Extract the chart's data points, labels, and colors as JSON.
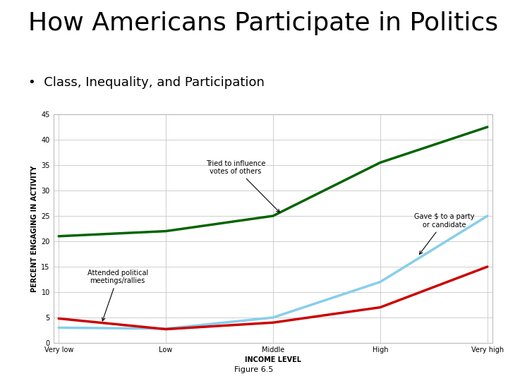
{
  "title": "How Americans Participate in Politics",
  "subtitle": "Class, Inequality, and Participation",
  "figure_label": "Figure 6.5",
  "xlabel": "INCOME LEVEL",
  "ylabel": "PERCENT ENGAGING IN ACTIVITY",
  "x_categories": [
    "Very low",
    "Low",
    "Middle",
    "High",
    "Very high"
  ],
  "y_ticks": [
    0,
    5,
    10,
    15,
    20,
    25,
    30,
    35,
    40,
    45
  ],
  "ylim": [
    0,
    45
  ],
  "series": [
    {
      "label": "Tried to influence votes of others",
      "color": "#006400",
      "linewidth": 2.5,
      "values": [
        21.0,
        22.0,
        25.0,
        35.5,
        42.5
      ]
    },
    {
      "label": "Gave $ to a party or candidate",
      "color": "#87CEEB",
      "linewidth": 2.5,
      "values": [
        3.0,
        2.8,
        5.0,
        12.0,
        25.0
      ]
    },
    {
      "label": "Attended political meetings/rallies",
      "color": "#CC0000",
      "linewidth": 2.5,
      "values": [
        4.8,
        2.7,
        4.0,
        7.0,
        15.0
      ]
    }
  ],
  "background_color": "#ffffff",
  "chart_bg": "#ffffff",
  "grid_color": "#c8c8c8",
  "title_fontsize": 26,
  "subtitle_fontsize": 13,
  "axis_label_fontsize": 7,
  "tick_fontsize": 7,
  "annotation_fontsize": 7,
  "chart_border_color": "#aaaaaa",
  "slide_bg": "#ffffff"
}
